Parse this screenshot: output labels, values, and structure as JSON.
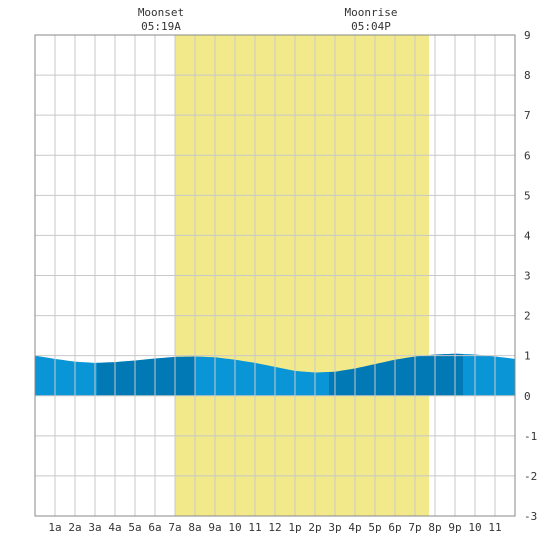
{
  "chart_data": {
    "type": "area",
    "title": "",
    "xlabel": "",
    "ylabel": "",
    "xlim": [
      0,
      24
    ],
    "ylim": [
      -3,
      9
    ],
    "y_ticks": [
      9,
      8,
      7,
      6,
      5,
      4,
      3,
      2,
      1,
      0,
      -1,
      -2,
      -3
    ],
    "x_tick_labels": [
      "1a",
      "2a",
      "3a",
      "4a",
      "5a",
      "6a",
      "7a",
      "8a",
      "9a",
      "10",
      "11",
      "12",
      "1p",
      "2p",
      "3p",
      "4p",
      "5p",
      "6p",
      "7p",
      "8p",
      "9p",
      "10",
      "11"
    ],
    "grid": true,
    "annotations": [
      {
        "label": "Moonset",
        "time": "05:19A"
      },
      {
        "label": "Moonrise",
        "time": "05:04P"
      }
    ],
    "daylight_span": [
      7.0,
      19.7
    ],
    "series": [
      {
        "x": [
          0,
          1,
          2,
          3,
          4,
          5,
          6,
          7,
          8,
          9,
          10,
          11,
          12,
          13,
          14,
          15,
          16,
          17,
          18,
          19,
          20,
          21,
          22,
          23,
          24
        ],
        "values": [
          1.0,
          0.92,
          0.85,
          0.82,
          0.84,
          0.88,
          0.93,
          0.97,
          0.98,
          0.96,
          0.9,
          0.82,
          0.72,
          0.62,
          0.58,
          0.6,
          0.68,
          0.79,
          0.9,
          0.98,
          1.03,
          1.05,
          1.03,
          0.98,
          0.92
        ]
      }
    ],
    "band_boundaries": [
      3.1,
      8.0,
      14.7,
      21.4
    ],
    "colors": {
      "daylight": "#f2ea8a",
      "water_light": "#0a96d6",
      "water_dark": "#0079b4",
      "grid": "#c8c8c8",
      "frame": "#888888"
    }
  }
}
